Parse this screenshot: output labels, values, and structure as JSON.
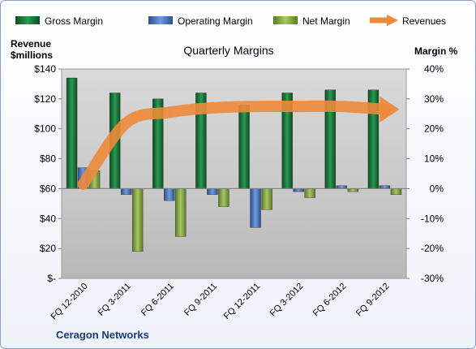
{
  "chart_data": {
    "type": "bar",
    "title": "Quarterly Margins",
    "left_axis_label_line1": "Revenue",
    "left_axis_label_line2": "$millions",
    "right_axis_label": "Margin %",
    "company": "Ceragon Networks",
    "categories": [
      "FQ 12-2010",
      "FQ 3-2011",
      "FQ 6-2011",
      "FQ 9-2011",
      "FQ 12-2011",
      "FQ 3-2012",
      "FQ 6-2012",
      "FQ 9-2012"
    ],
    "left_axis": {
      "min": 0,
      "max": 140,
      "step": 20,
      "tick_labels": [
        "$-",
        "$20",
        "$40",
        "$60",
        "$80",
        "$100",
        "$120",
        "$140"
      ]
    },
    "right_axis": {
      "min": -30,
      "max": 40,
      "step": 10,
      "tick_labels": [
        "-30%",
        "-20%",
        "-10%",
        "0%",
        "10%",
        "20%",
        "30%",
        "40%"
      ]
    },
    "legend_position": "top",
    "grid": false,
    "series": [
      {
        "name": "Gross Margin",
        "axis": "right",
        "values": [
          37,
          32,
          30,
          32,
          28,
          32,
          33,
          33
        ],
        "color": "#1e7b3f"
      },
      {
        "name": "Operating Margin",
        "axis": "right",
        "values": [
          7,
          -2,
          -4,
          -2,
          -13,
          -1,
          1,
          1
        ],
        "color": "#4f7ec4"
      },
      {
        "name": "Net Margin",
        "axis": "right",
        "values": [
          6,
          -21,
          -16,
          -6,
          -7,
          -3,
          -1,
          -2
        ],
        "color": "#8fae4a"
      },
      {
        "name": "Revenues",
        "axis": "left",
        "values": [
          63,
          104,
          111,
          114,
          115,
          115,
          115,
          113
        ],
        "color": "#ed8a3a"
      }
    ]
  }
}
